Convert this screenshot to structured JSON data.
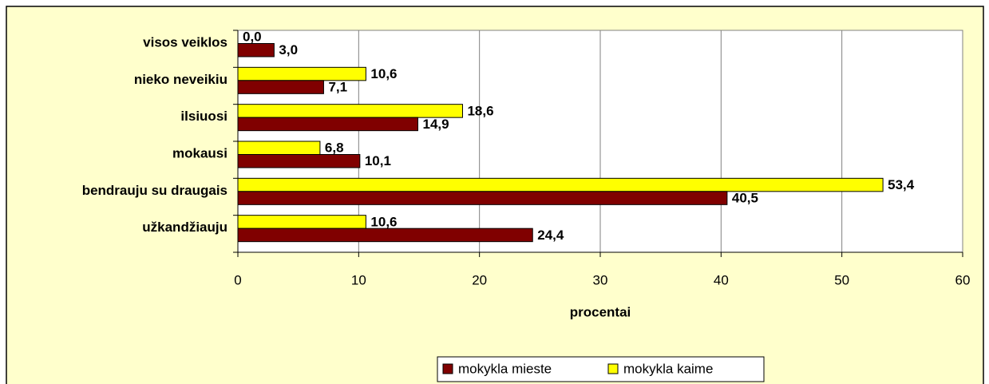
{
  "chart_data": {
    "type": "bar",
    "orientation": "horizontal",
    "categories": [
      "visos veiklos",
      "nieko neveikiu",
      "ilsiuosi",
      "mokausi",
      "bendrauju su draugais",
      "užkandžiauju"
    ],
    "series": [
      {
        "name": "mokykla mieste",
        "color": "#800000",
        "values": [
          3.0,
          7.1,
          14.9,
          10.1,
          40.5,
          24.4
        ],
        "value_labels": [
          "3,0",
          "7,1",
          "14,9",
          "10,1",
          "40,5",
          "24,4"
        ]
      },
      {
        "name": "mokykla kaime",
        "color": "#ffff00",
        "values": [
          0.0,
          10.6,
          18.6,
          6.8,
          53.4,
          10.6
        ],
        "value_labels": [
          "0,0",
          "10,6",
          "18,6",
          "6,8",
          "53,4",
          "10,6"
        ]
      }
    ],
    "xlim": [
      0,
      60
    ],
    "xticks": [
      0,
      10,
      20,
      30,
      40,
      50,
      60
    ],
    "xlabel": "procentai",
    "grid": true,
    "legend": "bottom"
  }
}
